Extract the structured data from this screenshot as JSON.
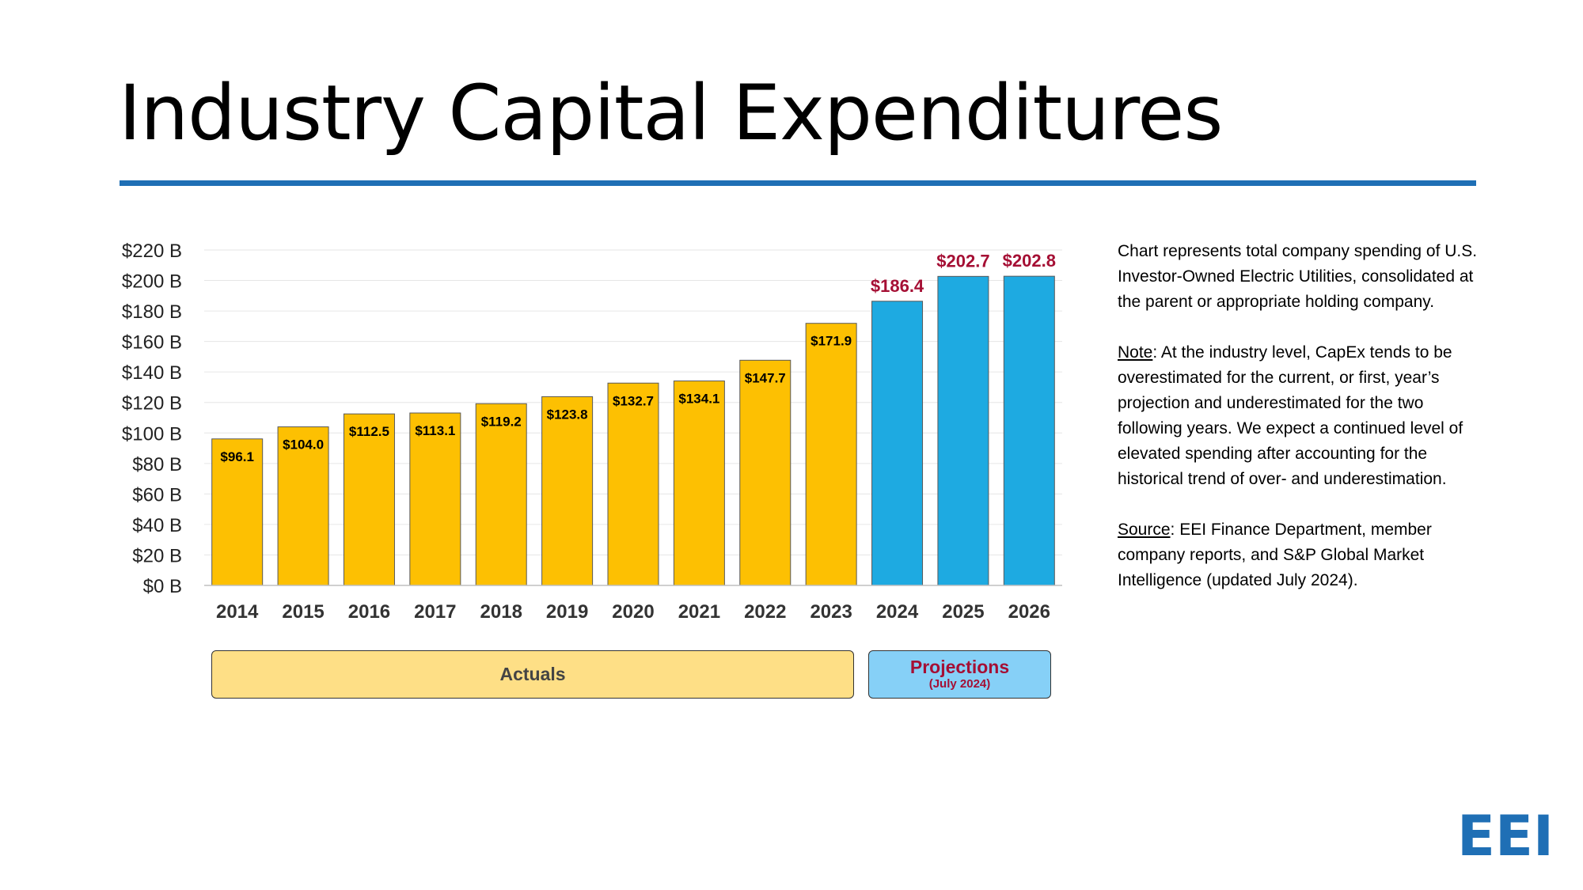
{
  "page": {
    "title": "Industry Capital Expenditures"
  },
  "chart_data": {
    "type": "bar",
    "title": "Industry Capital Expenditures",
    "categories": [
      "2014",
      "2015",
      "2016",
      "2017",
      "2018",
      "2019",
      "2020",
      "2021",
      "2022",
      "2023",
      "2024",
      "2025",
      "2026"
    ],
    "values": [
      96.1,
      104.0,
      112.5,
      113.1,
      119.2,
      123.8,
      132.7,
      134.1,
      147.7,
      171.9,
      186.4,
      202.7,
      202.8
    ],
    "value_labels": [
      "$96.1",
      "$104.0",
      "$112.5",
      "$113.1",
      "$119.2",
      "$123.8",
      "$132.7",
      "$134.1",
      "$147.7",
      "$171.9",
      "$186.4",
      "$202.7",
      "$202.8"
    ],
    "bar_kind": [
      "actual",
      "actual",
      "actual",
      "actual",
      "actual",
      "actual",
      "actual",
      "actual",
      "actual",
      "actual",
      "projection",
      "projection",
      "projection"
    ],
    "ylim": [
      0,
      220
    ],
    "ytick_values": [
      0,
      20,
      40,
      60,
      80,
      100,
      120,
      140,
      160,
      180,
      200,
      220
    ],
    "ytick_labels": [
      "$0 B",
      "$20 B",
      "$40 B",
      "$60 B",
      "$80 B",
      "$100 B",
      "$120 B",
      "$140 B",
      "$160 B",
      "$180 B",
      "$200 B",
      "$220 B"
    ],
    "xlabel": "",
    "ylabel": "",
    "grid": true,
    "colors": {
      "actual": "#fdc002",
      "projection": "#1eaae1",
      "projection_label": "#a50f34",
      "actual_label": "#000000"
    }
  },
  "bands": {
    "actuals": "Actuals",
    "projections": "Projections",
    "projections_sub": "(July 2024)"
  },
  "sidebar": {
    "description": "Chart represents total company spending of U.S. Investor-Owned Electric Utilities, consolidated at the parent or appropriate holding company.",
    "note_label": "Note",
    "note_text": ": At the industry level, CapEx tends to be overestimated for the current, or first, year’s projection and underestimated for the two following years. We expect a continued level of elevated spending after accounting for the historical trend of over- and underestimation.",
    "source_label": "Source",
    "source_text": ": EEI Finance Department, member company reports, and S&P Global Market Intelligence (updated July 2024)."
  },
  "logo": {
    "text": "EEI",
    "color": "#1f6fb5"
  },
  "accent_color": "#1f6fb5"
}
